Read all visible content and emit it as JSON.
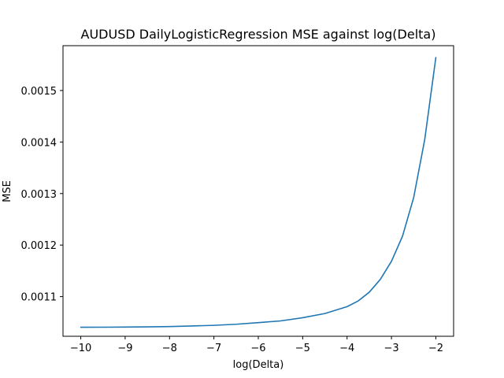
{
  "chart_data": {
    "type": "line",
    "title": "AUDUSD DailyLogisticRegression MSE against log(Delta)",
    "xlabel": "log(Delta)",
    "ylabel": "MSE",
    "xlim": [
      -10.4,
      -1.6
    ],
    "ylim": [
      0.001023,
      0.001587
    ],
    "grid": false,
    "x_ticks": [
      -10,
      -9,
      -8,
      -7,
      -6,
      -5,
      -4,
      -3,
      -2
    ],
    "x_tick_labels": [
      "−10",
      "−9",
      "−8",
      "−7",
      "−6",
      "−5",
      "−4",
      "−3",
      "−2"
    ],
    "y_ticks": [
      0.0011,
      0.0012,
      0.0013,
      0.0014,
      0.0015
    ],
    "y_tick_labels": [
      "0.0011",
      "0.0012",
      "0.0013",
      "0.0014",
      "0.0015"
    ],
    "series": [
      {
        "color": "#1f77b4",
        "x": [
          -10,
          -9.5,
          -9,
          -8.5,
          -8,
          -7.5,
          -7,
          -6.5,
          -6,
          -5.5,
          -5,
          -4.5,
          -4,
          -3.75,
          -3.5,
          -3.25,
          -3,
          -2.75,
          -2.5,
          -2.25,
          -2
        ],
        "values": [
          0.0010405,
          0.0010406,
          0.0010408,
          0.0010412,
          0.0010418,
          0.001043,
          0.0010442,
          0.0010463,
          0.0010495,
          0.0010528,
          0.001059,
          0.0010671,
          0.0010805,
          0.0010915,
          0.0011085,
          0.0011335,
          0.0011685,
          0.0012175,
          0.001292,
          0.001405,
          0.001564
        ]
      }
    ]
  }
}
